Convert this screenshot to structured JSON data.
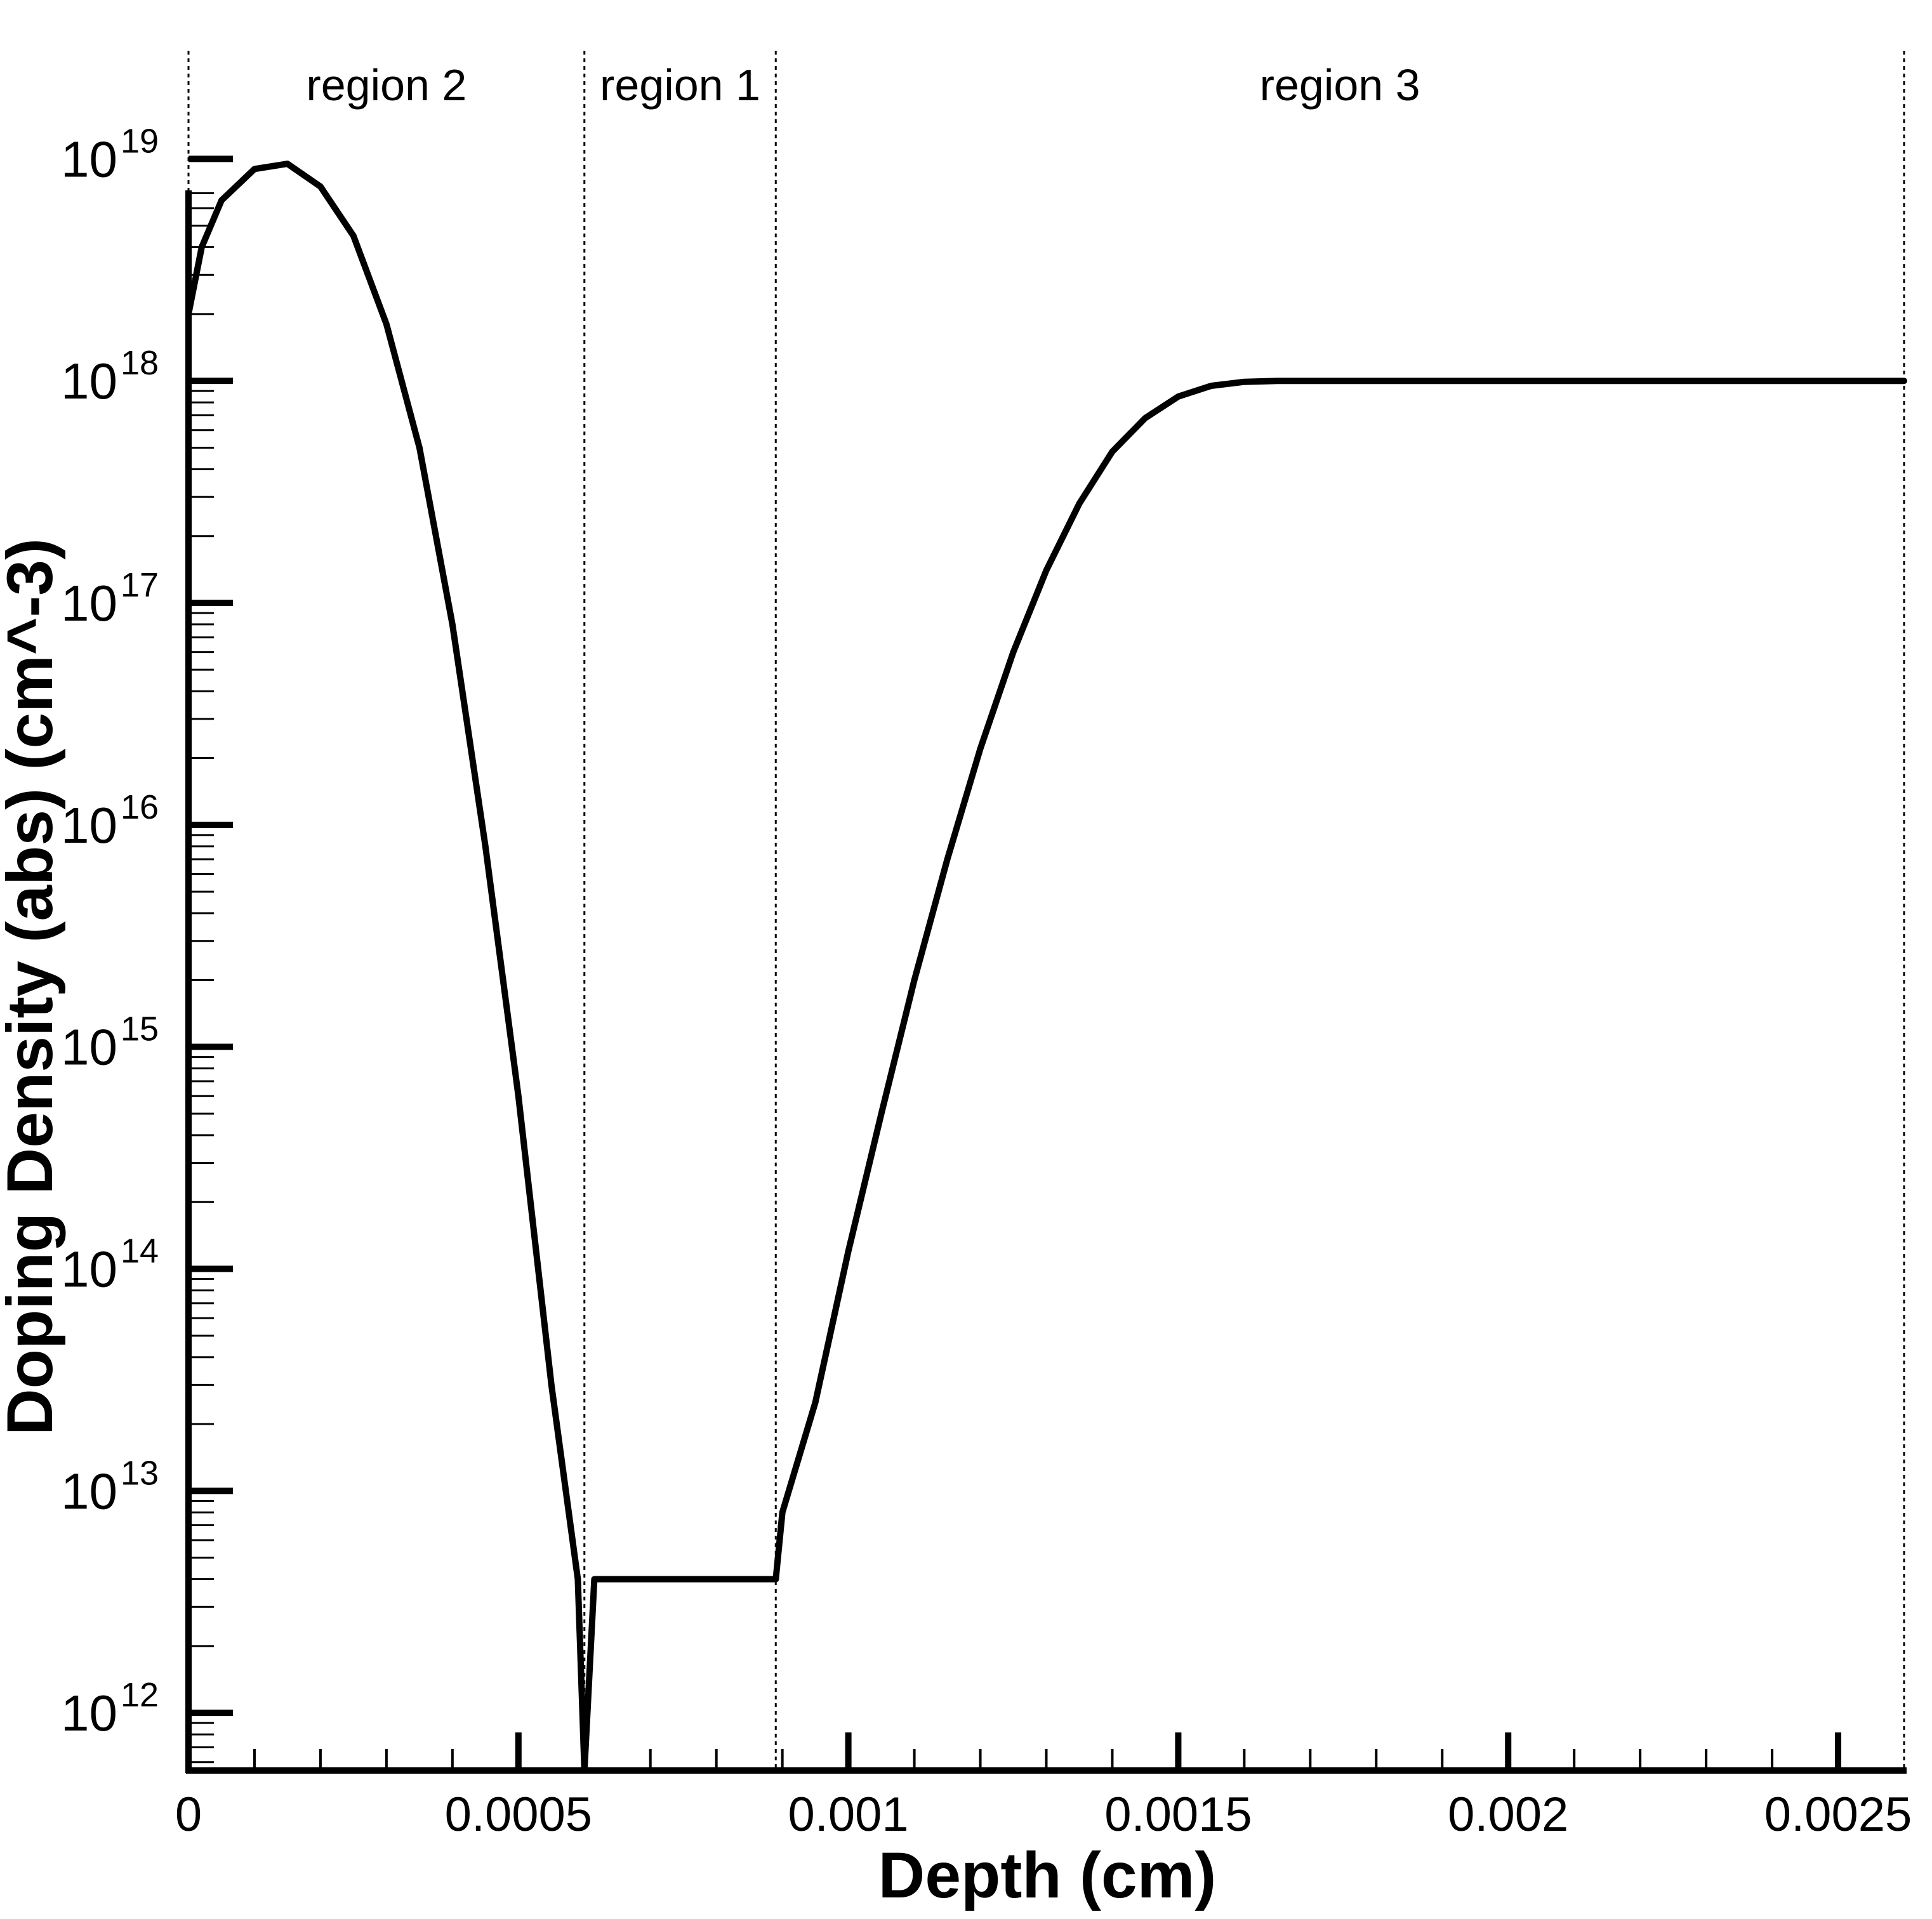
{
  "chart_data": {
    "type": "line",
    "title": "",
    "xlabel": "Depth (cm)",
    "ylabel": "Doping Density (abs) (cm^-3)",
    "xlim": [
      0,
      0.0026
    ],
    "ylim": [
      550000000000.0,
      3.5e+19
    ],
    "x_scale": "linear",
    "y_scale": "log",
    "grid": false,
    "legend": "none",
    "line_color": "#000000",
    "x_ticks": [
      {
        "value": 0,
        "label": "0"
      },
      {
        "value": 0.0005,
        "label": "0.0005"
      },
      {
        "value": 0.001,
        "label": "0.001"
      },
      {
        "value": 0.0015,
        "label": "0.0015"
      },
      {
        "value": 0.002,
        "label": "0.002"
      },
      {
        "value": 0.0025,
        "label": "0.0025"
      }
    ],
    "y_ticks": [
      {
        "value": 1000000000000.0,
        "base": "10",
        "exp": "12"
      },
      {
        "value": 10000000000000.0,
        "base": "10",
        "exp": "13"
      },
      {
        "value": 100000000000000.0,
        "base": "10",
        "exp": "14"
      },
      {
        "value": 1000000000000000.0,
        "base": "10",
        "exp": "15"
      },
      {
        "value": 1e+16,
        "base": "10",
        "exp": "16"
      },
      {
        "value": 1e+17,
        "base": "10",
        "exp": "17"
      },
      {
        "value": 1e+18,
        "base": "10",
        "exp": "18"
      },
      {
        "value": 1e+19,
        "base": "10",
        "exp": "19"
      }
    ],
    "regions": [
      {
        "label": "region 2",
        "x_start": 0,
        "x_end": 0.0006
      },
      {
        "label": "region 1",
        "x_start": 0.0006,
        "x_end": 0.00089
      },
      {
        "label": "region 3",
        "x_start": 0.00089,
        "x_end": 0.0026
      }
    ],
    "series": [
      {
        "x": [
          0,
          2e-05,
          5e-05,
          0.0001,
          0.00015,
          0.0002,
          0.00025,
          0.0003,
          0.00035,
          0.0004,
          0.00045,
          0.0005,
          0.00055,
          0.00059,
          0.0006,
          0.000615,
          0.00088,
          0.00089,
          0.0009,
          0.00095,
          0.001,
          0.00105,
          0.0011,
          0.00115,
          0.0012,
          0.00125,
          0.0013,
          0.00135,
          0.0014,
          0.00145,
          0.0015,
          0.00155,
          0.0016,
          0.00165,
          0.0017,
          0.0018,
          0.0019,
          0.002,
          0.0021,
          0.0022,
          0.0023,
          0.0024,
          0.0025,
          0.0026
        ],
        "y": [
          2e+18,
          4e+18,
          6.5e+18,
          9e+18,
          9.5e+18,
          7.5e+18,
          4.5e+18,
          1.8e+18,
          5e+17,
          8e+16,
          8000000000000000.0,
          600000000000000.0,
          30000000000000.0,
          4000000000000.0,
          550000000000.0,
          4000000000000.0,
          4000000000000.0,
          4000000000000.0,
          8000000000000.0,
          25000000000000.0,
          120000000000000.0,
          500000000000000.0,
          2000000000000000.0,
          7000000000000000.0,
          2.2e+16,
          6e+16,
          1.4e+17,
          2.8e+17,
          4.8e+17,
          6.8e+17,
          8.5e+17,
          9.5e+17,
          9.9e+17,
          1e+18,
          1e+18,
          1e+18,
          1e+18,
          1e+18,
          1e+18,
          1e+18,
          1e+18,
          1e+18,
          1e+18,
          1e+18
        ]
      }
    ]
  }
}
